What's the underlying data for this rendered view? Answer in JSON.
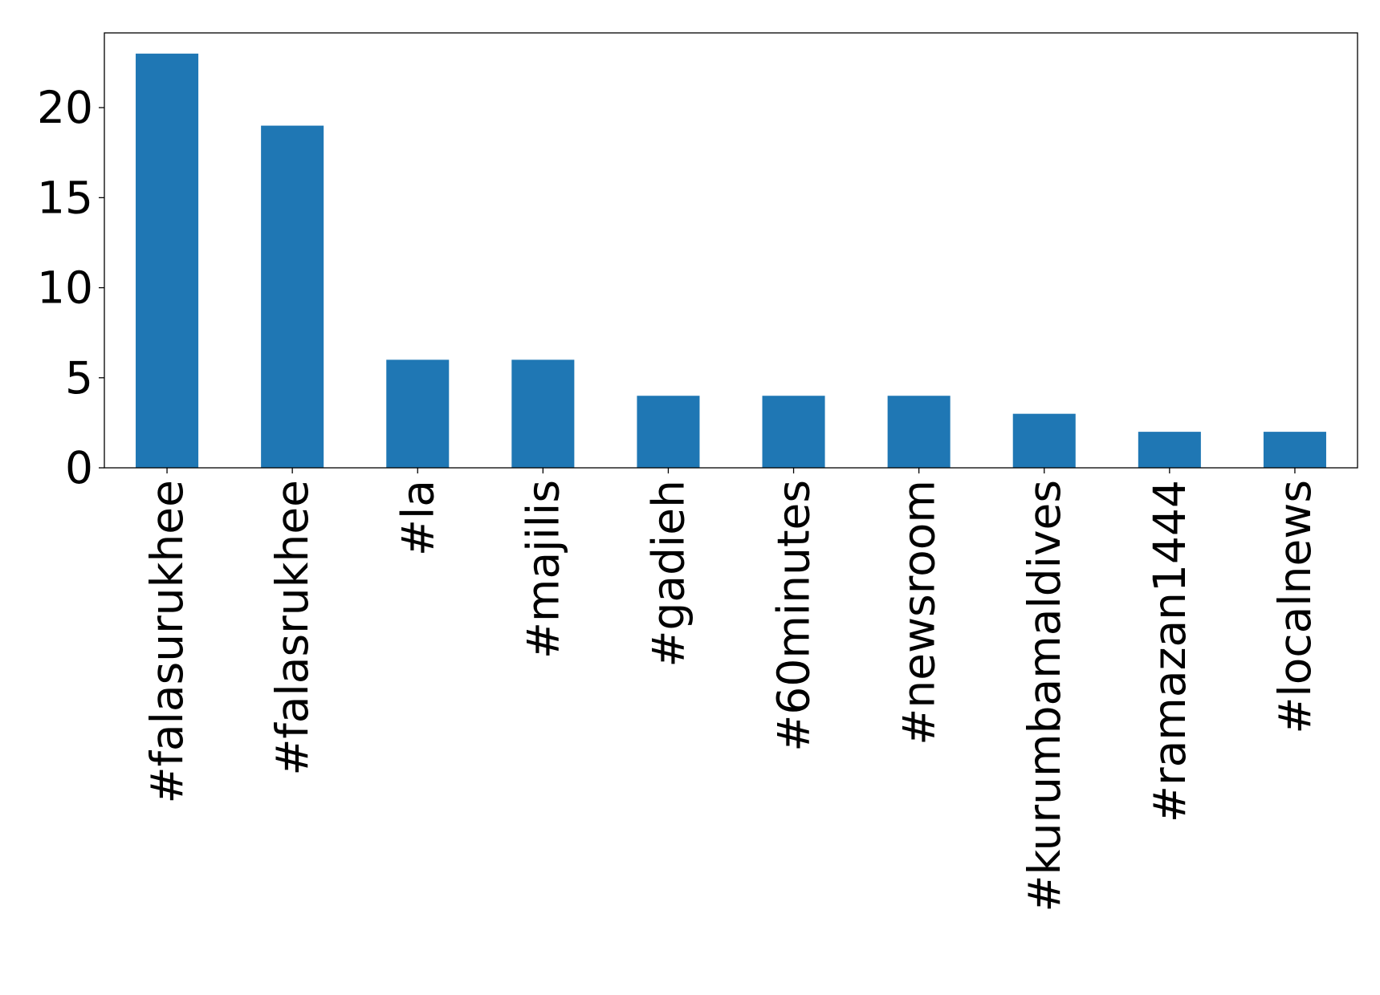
{
  "chart_data": {
    "type": "bar",
    "title": "",
    "xlabel": "",
    "ylabel": "",
    "categories": [
      "#falasurukhee",
      "#falasrukhee",
      "#la",
      "#majilis",
      "#gadieh",
      "#60minutes",
      "#newsroom",
      "#kurumbamaldives",
      "#ramazan1444",
      "#localnews"
    ],
    "values": [
      23,
      19,
      6,
      6,
      4,
      4,
      4,
      3,
      2,
      2
    ],
    "ylim": [
      0,
      24.15
    ],
    "yticks": [
      "0",
      "5",
      "10",
      "15",
      "20"
    ],
    "bar_color": "#1f77b4",
    "grid": false,
    "legend": "none"
  }
}
